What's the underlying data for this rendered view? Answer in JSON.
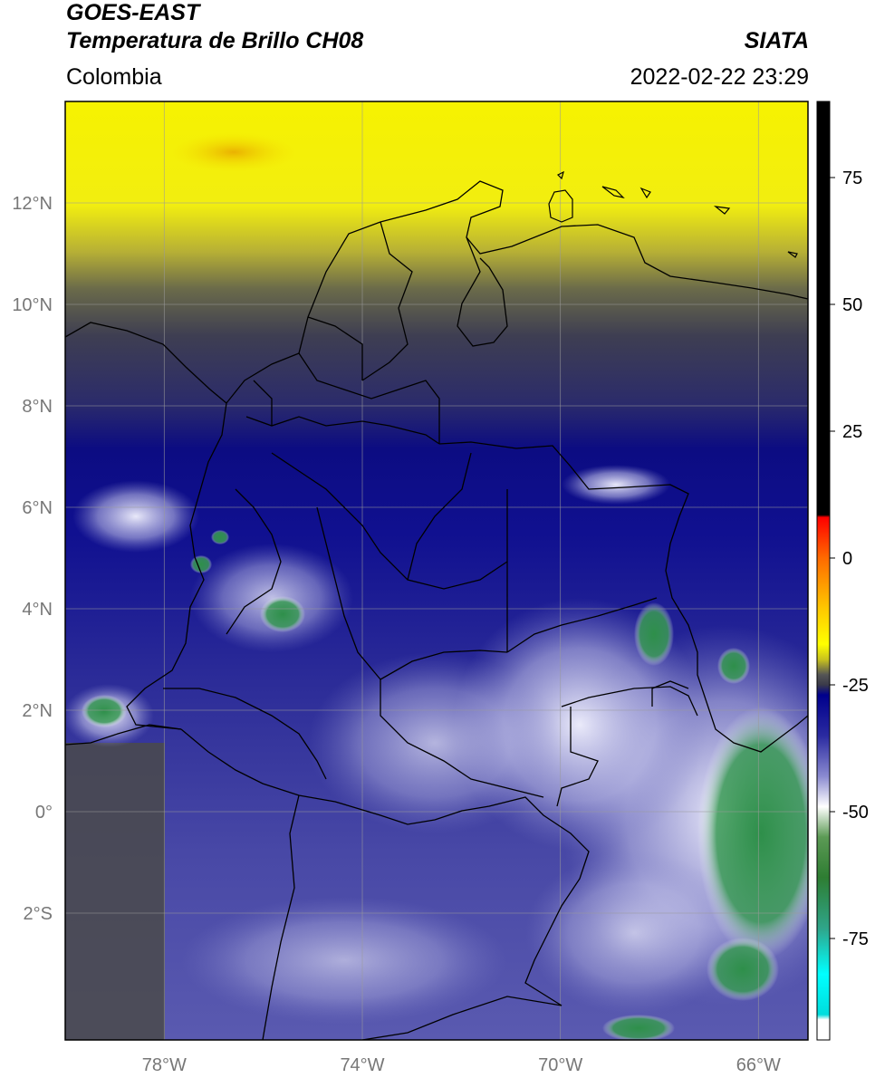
{
  "header": {
    "satellite": "GOES-EAST",
    "product": "Temperatura de Brillo CH08",
    "region": "Colombia",
    "organization": "SIATA",
    "timestamp": "2022-02-22 23:29"
  },
  "map": {
    "lon_range": [
      -80.0,
      -65.0
    ],
    "lat_range": [
      -4.5,
      14.0
    ],
    "lon_ticks": [
      {
        "value": -78,
        "label": "78°W"
      },
      {
        "value": -74,
        "label": "74°W"
      },
      {
        "value": -70,
        "label": "70°W"
      },
      {
        "value": -66,
        "label": "66°W"
      }
    ],
    "lat_ticks": [
      {
        "value": 12,
        "label": "12°N"
      },
      {
        "value": 10,
        "label": "10°N"
      },
      {
        "value": 8,
        "label": "8°N"
      },
      {
        "value": 6,
        "label": "6°N"
      },
      {
        "value": 4,
        "label": "4°N"
      },
      {
        "value": 2,
        "label": "2°N"
      },
      {
        "value": 0,
        "label": "0°"
      },
      {
        "value": -2,
        "label": "2°S"
      }
    ],
    "gridlines": true
  },
  "colorbar": {
    "range": [
      -95,
      90
    ],
    "ticks": [
      {
        "value": 75,
        "label": "75"
      },
      {
        "value": 50,
        "label": "50"
      },
      {
        "value": 25,
        "label": "25"
      },
      {
        "value": 0,
        "label": "0"
      },
      {
        "value": -25,
        "label": "-25"
      },
      {
        "value": -50,
        "label": "-50"
      },
      {
        "value": -75,
        "label": "-75"
      }
    ],
    "stops": [
      {
        "value": 90,
        "color": "#000000"
      },
      {
        "value": 8.5,
        "color": "#000000"
      },
      {
        "value": 8,
        "color": "#ff0000"
      },
      {
        "value": 0,
        "color": "#ff6a00"
      },
      {
        "value": -10,
        "color": "#ffc800"
      },
      {
        "value": -17,
        "color": "#ffff00"
      },
      {
        "value": -20,
        "color": "#c8c21e"
      },
      {
        "value": -23,
        "color": "#555555"
      },
      {
        "value": -25,
        "color": "#3a3a4a"
      },
      {
        "value": -27,
        "color": "#00008c"
      },
      {
        "value": -35,
        "color": "#2a2aa0"
      },
      {
        "value": -43,
        "color": "#8a8ad0"
      },
      {
        "value": -49,
        "color": "#ffffff"
      },
      {
        "value": -55,
        "color": "#5c9a55"
      },
      {
        "value": -63,
        "color": "#2e7d32"
      },
      {
        "value": -73,
        "color": "#2fa58a"
      },
      {
        "value": -82,
        "color": "#00ffff"
      },
      {
        "value": -90,
        "color": "#00dddd"
      },
      {
        "value": -91,
        "color": "#ffffff"
      },
      {
        "value": -95,
        "color": "#ffffff"
      }
    ]
  }
}
